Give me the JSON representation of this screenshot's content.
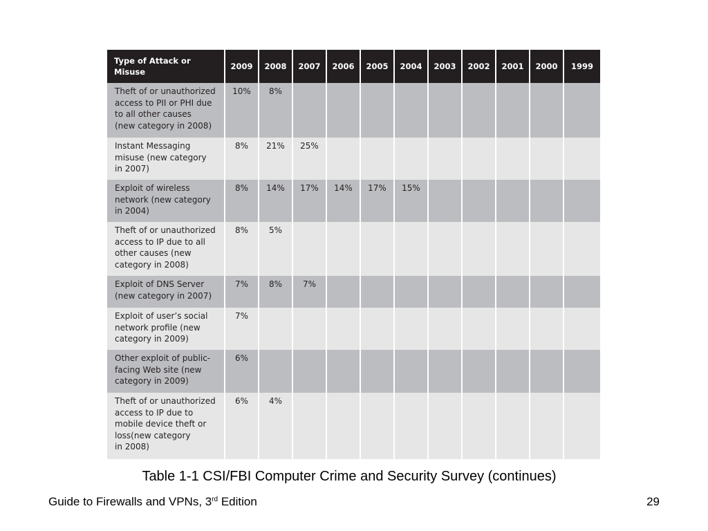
{
  "chart_data": {
    "type": "table",
    "columns": [
      "Type of Attack or Misuse",
      "2009",
      "2008",
      "2007",
      "2006",
      "2005",
      "2004",
      "2003",
      "2002",
      "2001",
      "2000",
      "1999"
    ],
    "rows": [
      {
        "label": "Theft of or unauthorized\naccess to PII or PHI due\nto all other causes\n(new category in 2008)",
        "values": [
          "10%",
          "8%",
          "",
          "",
          "",
          "",
          "",
          "",
          "",
          "",
          ""
        ]
      },
      {
        "label": "Instant Messaging\nmisuse (new category\nin 2007)",
        "values": [
          "8%",
          "21%",
          "25%",
          "",
          "",
          "",
          "",
          "",
          "",
          "",
          ""
        ]
      },
      {
        "label": "Exploit of wireless\nnetwork (new category\nin 2004)",
        "values": [
          "8%",
          "14%",
          "17%",
          "14%",
          "17%",
          "15%",
          "",
          "",
          "",
          "",
          ""
        ]
      },
      {
        "label": "Theft of or unauthorized\naccess to IP due to all\nother causes (new\ncategory in 2008)",
        "values": [
          "8%",
          "5%",
          "",
          "",
          "",
          "",
          "",
          "",
          "",
          "",
          ""
        ]
      },
      {
        "label": "Exploit of DNS Server\n(new category in 2007)",
        "values": [
          "7%",
          "8%",
          "7%",
          "",
          "",
          "",
          "",
          "",
          "",
          "",
          ""
        ]
      },
      {
        "label": "Exploit of user’s social\nnetwork profile (new\ncategory in 2009)",
        "values": [
          "7%",
          "",
          "",
          "",
          "",
          "",
          "",
          "",
          "",
          "",
          ""
        ]
      },
      {
        "label": "Other exploit of public-\nfacing Web site (new\ncategory in 2009)",
        "values": [
          "6%",
          "",
          "",
          "",
          "",
          "",
          "",
          "",
          "",
          "",
          ""
        ]
      },
      {
        "label": "Theft of or unauthorized\naccess to IP due to\nmobile device theft or\nloss(new category\nin 2008)",
        "values": [
          "6%",
          "4%",
          "",
          "",
          "",
          "",
          "",
          "",
          "",
          "",
          ""
        ]
      }
    ]
  },
  "caption": "Table 1-1 CSI/FBI Computer Crime and Security Survey (continues)",
  "footer": {
    "book_title": "Guide to Firewalls and VPNs, 3",
    "book_title_sup": "rd",
    "book_title_end": " Edition",
    "page_number": "29"
  },
  "colors": {
    "header_bg": "#231f20",
    "row_dark": "#bcbdc0",
    "row_light": "#e6e6e7"
  }
}
